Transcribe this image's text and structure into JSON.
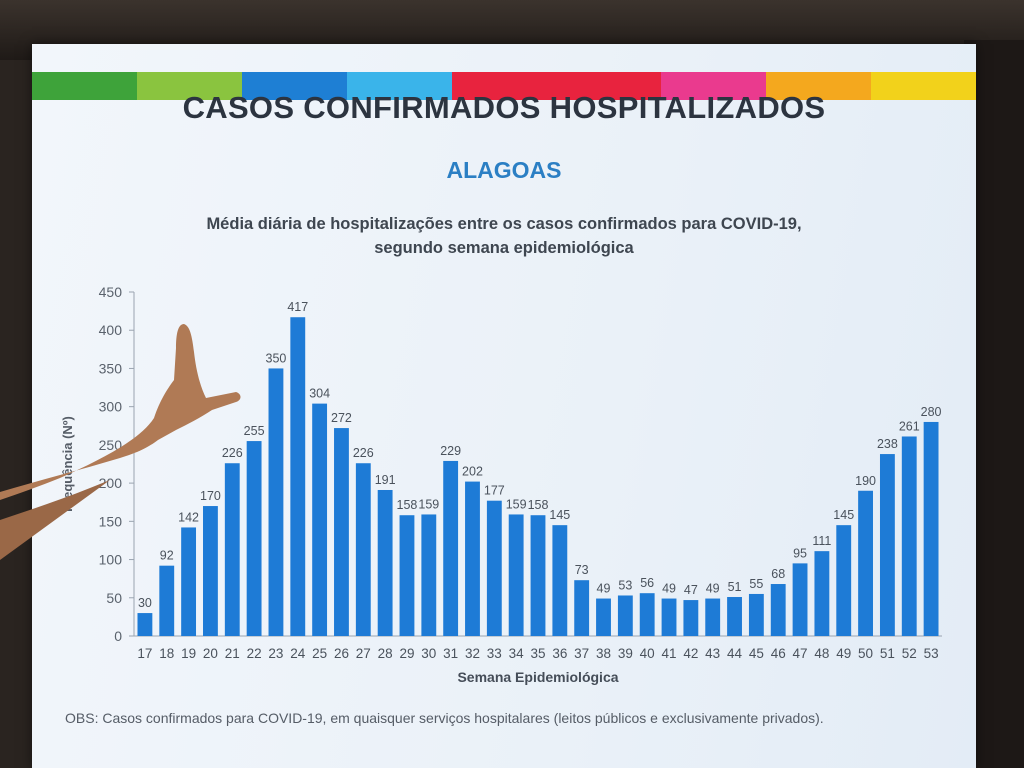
{
  "slide": {
    "title": "CASOS CONFIRMADOS HOSPITALIZADOS",
    "subtitle": "ALAGOAS",
    "description_line1": "Média diária de hospitalizações entre os casos confirmados para COVID-19,",
    "description_line2": "segundo semana epidemiológica",
    "note": "OBS: Casos confirmados para COVID-19, em quaisquer serviços hospitalares (leitos públicos e exclusivamente privados)."
  },
  "colors": {
    "bar": "#1e7bd6",
    "stripe": [
      "#3ea33a",
      "#8ac43f",
      "#1e7fd4",
      "#3ab4ea",
      "#e8233e",
      "#e8233e",
      "#ea3a8e",
      "#f4a81e",
      "#f2d21b"
    ]
  },
  "chart_data": {
    "type": "bar",
    "categories": [
      "17",
      "18",
      "19",
      "20",
      "21",
      "22",
      "23",
      "24",
      "25",
      "26",
      "27",
      "28",
      "29",
      "30",
      "31",
      "32",
      "33",
      "34",
      "35",
      "36",
      "37",
      "38",
      "39",
      "40",
      "41",
      "42",
      "43",
      "44",
      "45",
      "46",
      "47",
      "48",
      "49",
      "50",
      "51",
      "52",
      "53"
    ],
    "values": [
      30,
      92,
      142,
      170,
      226,
      255,
      350,
      417,
      304,
      272,
      226,
      191,
      158,
      159,
      229,
      202,
      177,
      159,
      158,
      145,
      73,
      49,
      53,
      56,
      49,
      47,
      49,
      51,
      55,
      68,
      95,
      111,
      145,
      190,
      238,
      261,
      280
    ],
    "xlabel": "Semana Epidemiológica",
    "ylabel": "Frequência (Nº)",
    "ylim": [
      0,
      450
    ],
    "yticks": [
      0,
      50,
      100,
      150,
      200,
      250,
      300,
      350,
      400,
      450
    ],
    "grid": false,
    "legend": "none"
  }
}
